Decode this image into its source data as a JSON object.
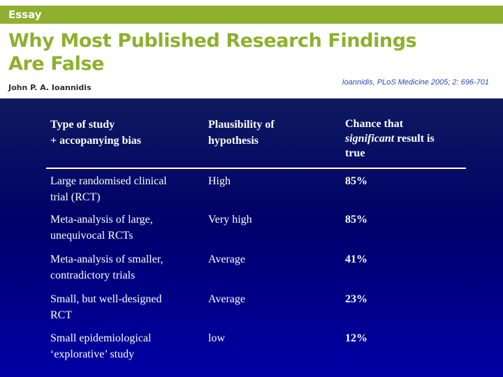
{
  "header": {
    "essay_label": "Essay",
    "title_line1": "Why Most Published Research Findings",
    "title_line2": "Are False",
    "author": "John P. A. Ioannidis",
    "citation": "Ioannidis, PLoS Medicine 2005; 2: 696-701"
  },
  "table": {
    "headers": {
      "type_line1": "Type of study",
      "type_line2": "+ accopanying bias",
      "plausibility_line1": "Plausibility of",
      "plausibility_line2": "hypothesis",
      "chance_line1": "Chance that",
      "chance_italic": "significant",
      "chance_after_italic": " result is",
      "chance_line3": "true"
    },
    "rows": [
      {
        "type_line1": "Large randomised clinical",
        "type_line2": "trial (RCT)",
        "plausibility": "High",
        "chance": "85%"
      },
      {
        "type_line1": "Meta-analysis of large,",
        "type_line2": "unequivocal RCTs",
        "plausibility": "Very high",
        "chance": "85%"
      },
      {
        "type_line1": "Meta-analysis of smaller,",
        "type_line2": "contradictory trials",
        "plausibility": "Average",
        "chance": "41%"
      },
      {
        "type_line1": "Small, but well-designed",
        "type_line2": "RCT",
        "plausibility": "Average",
        "chance": "23%"
      },
      {
        "type_line1": "Small epidemiological",
        "type_line2": "‘explorative’ study",
        "plausibility": "low",
        "chance": "12%"
      }
    ]
  },
  "colors": {
    "essay_green": "#8eb02e",
    "background_top": "#0f1a5e",
    "background_bottom": "#0000a6",
    "citation_blue": "#2f4ab5"
  }
}
